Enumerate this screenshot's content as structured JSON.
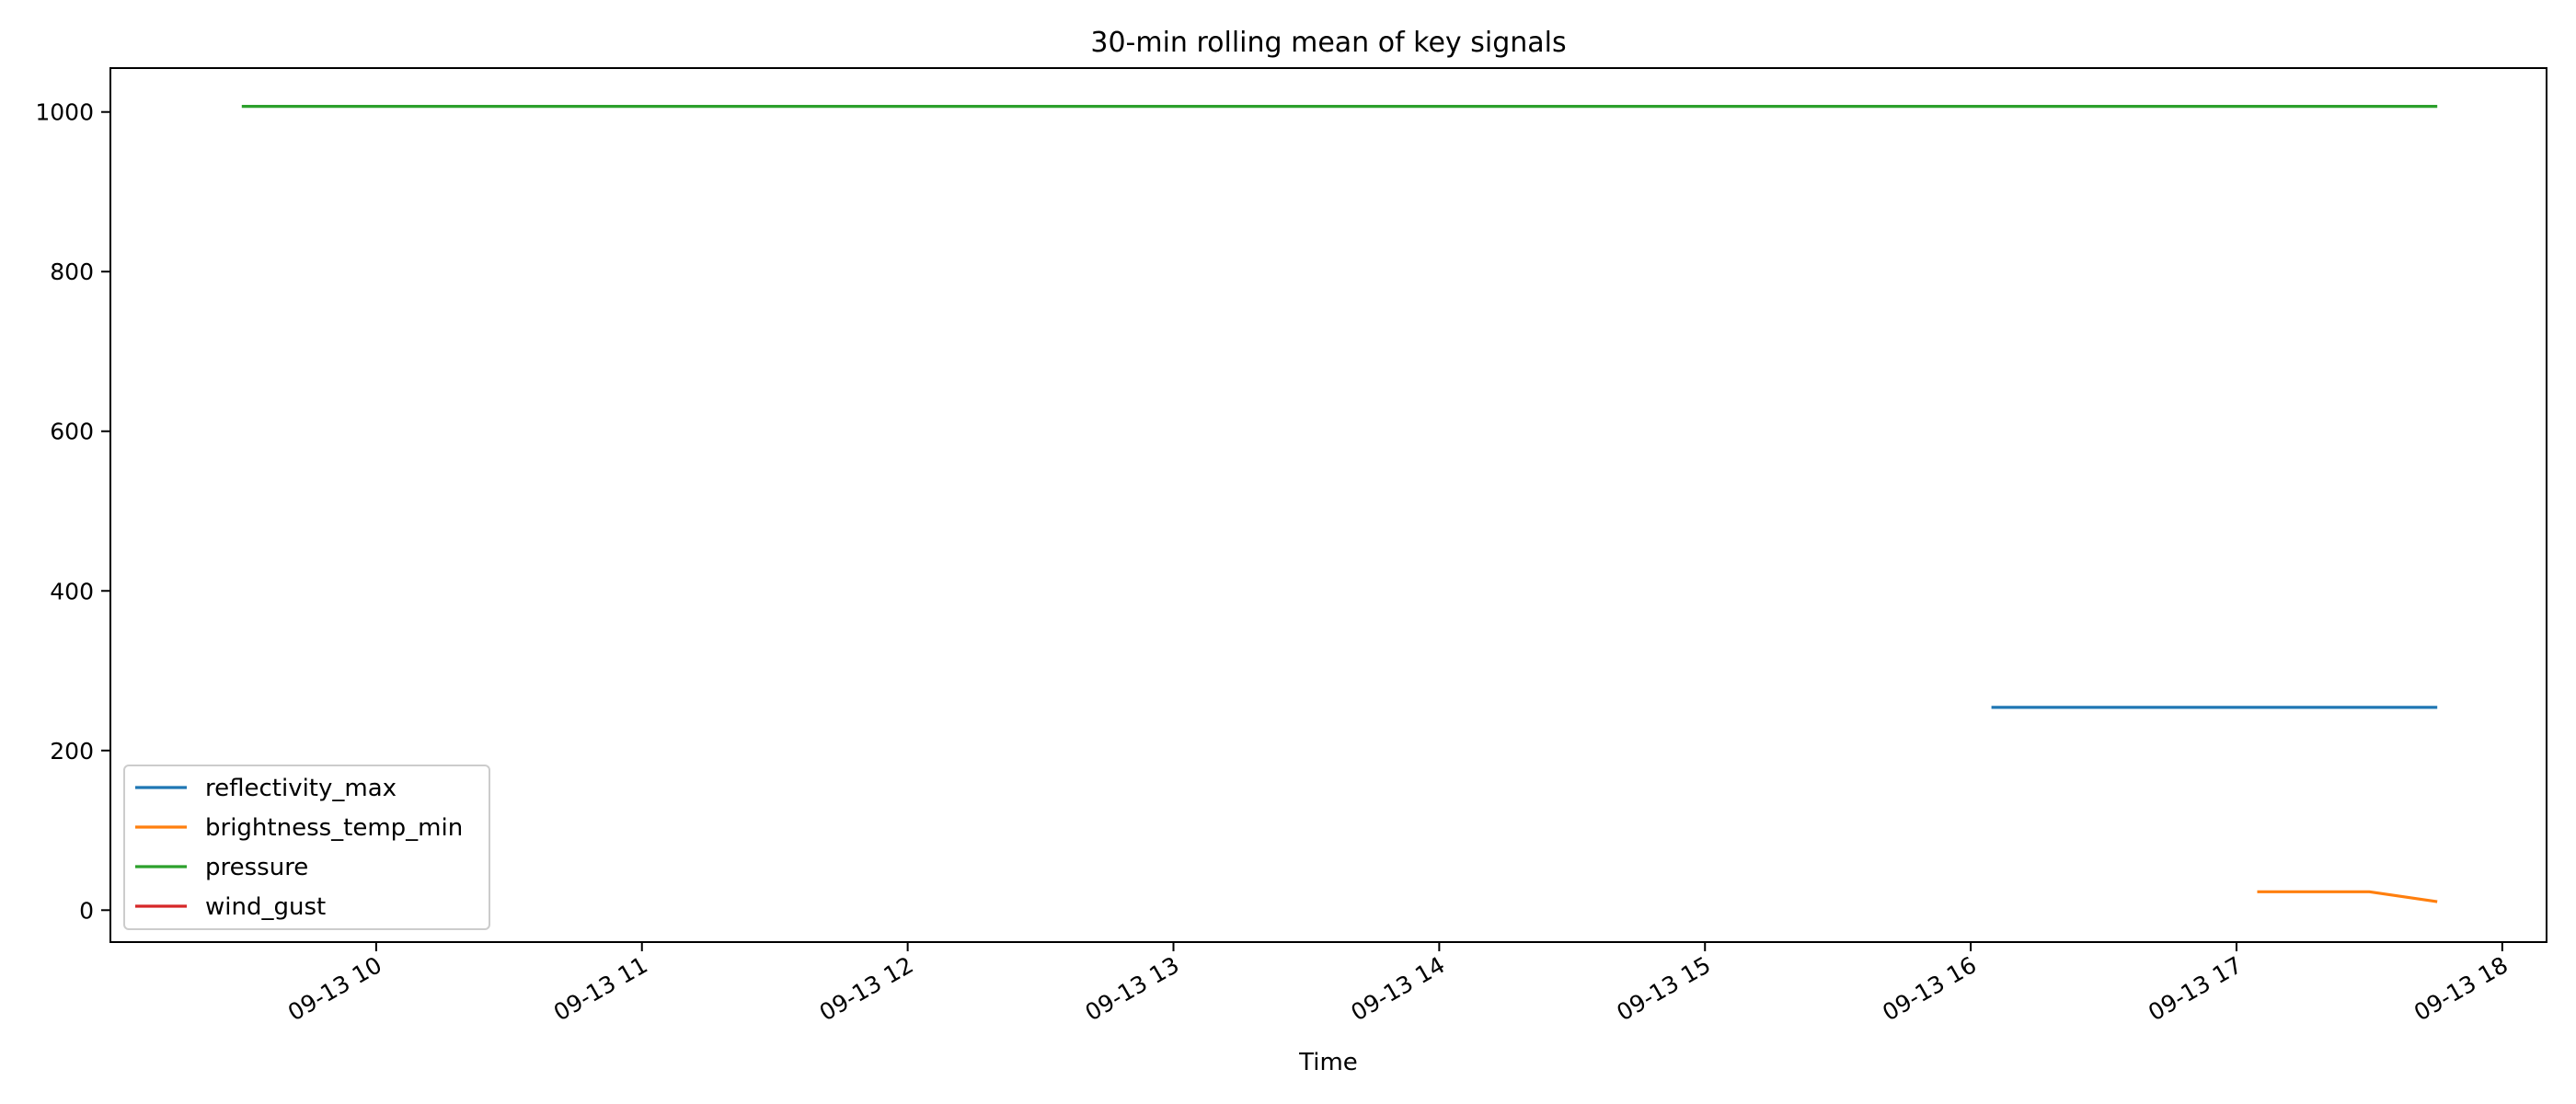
{
  "chart_data": {
    "type": "line",
    "title": "30-min rolling mean of key signals",
    "xlabel": "Time",
    "ylabel": "",
    "x_range": [
      "2023-09-13T09:00",
      "2023-09-13T18:10"
    ],
    "ylim": [
      -40,
      1055
    ],
    "x_ticks": [
      {
        "value": "2023-09-13T10:00",
        "label": "09-13 10"
      },
      {
        "value": "2023-09-13T11:00",
        "label": "09-13 11"
      },
      {
        "value": "2023-09-13T12:00",
        "label": "09-13 12"
      },
      {
        "value": "2023-09-13T13:00",
        "label": "09-13 13"
      },
      {
        "value": "2023-09-13T14:00",
        "label": "09-13 14"
      },
      {
        "value": "2023-09-13T15:00",
        "label": "09-13 15"
      },
      {
        "value": "2023-09-13T16:00",
        "label": "09-13 16"
      },
      {
        "value": "2023-09-13T17:00",
        "label": "09-13 17"
      },
      {
        "value": "2023-09-13T18:00",
        "label": "09-13 18"
      }
    ],
    "y_ticks": [
      0,
      200,
      400,
      600,
      800,
      1000
    ],
    "grid": false,
    "legend_position": "lower-left",
    "series": [
      {
        "name": "reflectivity_max",
        "color": "#1f77b4",
        "points": [
          {
            "x": "2023-09-13T16:05",
            "y": 254
          },
          {
            "x": "2023-09-13T17:45",
            "y": 254
          }
        ]
      },
      {
        "name": "brightness_temp_min",
        "color": "#ff7f0e",
        "points": [
          {
            "x": "2023-09-13T17:05",
            "y": 23
          },
          {
            "x": "2023-09-13T17:30",
            "y": 23
          },
          {
            "x": "2023-09-13T17:45",
            "y": 11
          }
        ]
      },
      {
        "name": "pressure",
        "color": "#2ca02c",
        "points": [
          {
            "x": "2023-09-13T09:30",
            "y": 1007
          },
          {
            "x": "2023-09-13T17:45",
            "y": 1007
          }
        ]
      },
      {
        "name": "wind_gust",
        "color": "#d62728",
        "points": []
      }
    ]
  }
}
